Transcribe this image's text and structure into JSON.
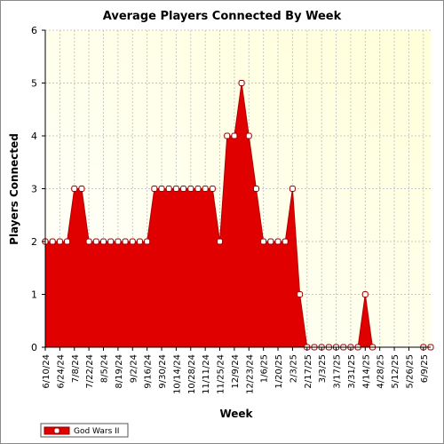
{
  "chart_data": {
    "type": "area",
    "title": "Average Players Connected By Week",
    "xlabel": "Week",
    "ylabel": "Players Connected",
    "ylim": [
      0,
      6
    ],
    "yticks": [
      0,
      1,
      2,
      3,
      4,
      5,
      6
    ],
    "grid": true,
    "legend_position": "bottom-left",
    "x_tick_labels": [
      "6/10/24",
      "6/24/24",
      "7/8/24",
      "7/22/24",
      "8/5/24",
      "8/19/24",
      "9/2/24",
      "9/16/24",
      "9/30/24",
      "10/14/24",
      "10/28/24",
      "11/11/24",
      "11/25/24",
      "12/9/24",
      "12/23/24",
      "1/6/25",
      "1/20/25",
      "2/3/25",
      "2/17/25",
      "3/3/25",
      "3/17/25",
      "3/31/25",
      "4/14/25",
      "4/28/25",
      "5/12/25",
      "5/26/25",
      "6/9/25"
    ],
    "x_weeks": [
      "6/10/24",
      "6/17/24",
      "6/24/24",
      "7/1/24",
      "7/8/24",
      "7/15/24",
      "7/22/24",
      "7/29/24",
      "8/5/24",
      "8/12/24",
      "8/19/24",
      "8/26/24",
      "9/2/24",
      "9/9/24",
      "9/16/24",
      "9/23/24",
      "9/30/24",
      "10/7/24",
      "10/14/24",
      "10/21/24",
      "10/28/24",
      "11/4/24",
      "11/11/24",
      "11/18/24",
      "11/25/24",
      "12/2/24",
      "12/9/24",
      "12/16/24",
      "12/23/24",
      "12/30/24",
      "1/6/25",
      "1/13/25",
      "1/20/25",
      "1/27/25",
      "2/3/25",
      "2/10/25",
      "2/17/25",
      "2/24/25",
      "3/3/25",
      "3/10/25",
      "3/17/25",
      "3/24/25",
      "3/31/25",
      "4/7/25",
      "4/14/25",
      "4/21/25",
      "4/28/25",
      "5/5/25",
      "5/12/25",
      "5/19/25",
      "5/26/25",
      "6/2/25",
      "6/9/25",
      "6/16/25"
    ],
    "series": [
      {
        "name": "God Wars II",
        "color": "#e00000",
        "values": [
          2,
          2,
          2,
          2,
          3,
          3,
          2,
          2,
          2,
          2,
          2,
          2,
          2,
          2,
          2,
          3,
          3,
          3,
          3,
          3,
          3,
          3,
          3,
          3,
          2,
          4,
          4,
          5,
          4,
          3,
          2,
          2,
          2,
          2,
          3,
          1,
          0,
          0,
          0,
          0,
          0,
          0,
          0,
          0,
          1,
          0,
          null,
          null,
          null,
          null,
          null,
          null,
          0,
          0
        ]
      }
    ]
  }
}
